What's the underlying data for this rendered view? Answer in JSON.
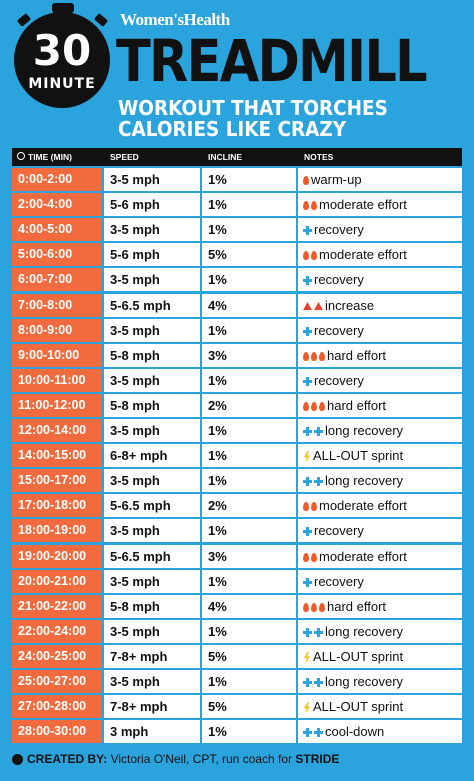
{
  "header": {
    "brand": "Women'sHealth",
    "badge_number": "30",
    "badge_label": "MINUTE",
    "title": "TREADMILL",
    "subtitle_lines": [
      "WORKOUT THAT TORCHES",
      "CALORIES LIKE CRAZY"
    ]
  },
  "table": {
    "columns": [
      "TIME (MIN)",
      "SPEED",
      "INCLINE",
      "NOTES"
    ],
    "rows": [
      [
        "0:00-2:00",
        "3-5 mph",
        "1%",
        "warm-up"
      ],
      [
        "2:00-4:00",
        "5-6 mph",
        "1%",
        "moderate effort"
      ],
      [
        "4:00-5:00",
        "3-5 mph",
        "1%",
        "recovery"
      ],
      [
        "5:00-6:00",
        "5-6 mph",
        "5%",
        "moderate effort"
      ],
      [
        "6:00-7:00",
        "3-5 mph",
        "1%",
        "recovery"
      ],
      [
        "7:00-8:00",
        "5-6.5 mph",
        "4%",
        "increase"
      ],
      [
        "8:00-9:00",
        "3-5 mph",
        "1%",
        "recovery"
      ],
      [
        "9:00-10:00",
        "5-8 mph",
        "3%",
        "hard effort"
      ],
      [
        "10:00-11:00",
        "3-5 mph",
        "1%",
        "recovery"
      ],
      [
        "11:00-12:00",
        "5-8 mph",
        "2%",
        "hard effort"
      ],
      [
        "12:00-14:00",
        "3-5 mph",
        "1%",
        "long recovery"
      ],
      [
        "14:00-15:00",
        "6-8+ mph",
        "1%",
        "ALL-OUT sprint"
      ],
      [
        "15:00-17:00",
        "3-5 mph",
        "1%",
        "long recovery"
      ],
      [
        "17:00-18:00",
        "5-6.5 mph",
        "2%",
        "moderate effort"
      ],
      [
        "18:00-19:00",
        "3-5 mph",
        "1%",
        "recovery"
      ],
      [
        "19:00-20:00",
        "5-6.5 mph",
        "3%",
        "moderate effort"
      ],
      [
        "20:00-21:00",
        "3-5 mph",
        "1%",
        "recovery"
      ],
      [
        "21:00-22:00",
        "5-8 mph",
        "4%",
        "hard effort"
      ],
      [
        "22:00-24:00",
        "3-5 mph",
        "1%",
        "long recovery"
      ],
      [
        "24:00-25:00",
        "7-8+ mph",
        "5%",
        "ALL-OUT sprint"
      ],
      [
        "25:00-27:00",
        "3-5 mph",
        "1%",
        "long recovery"
      ],
      [
        "27:00-28:00",
        "7-8+ mph",
        "5%",
        "ALL-OUT sprint"
      ],
      [
        "28:00-30:00",
        "3 mph",
        "1%",
        "cool-down"
      ]
    ]
  },
  "footer": {
    "label": "CREATED BY:",
    "text": "Victoria O'Neil, CPT, run coach for",
    "brand": "STRIDE"
  }
}
